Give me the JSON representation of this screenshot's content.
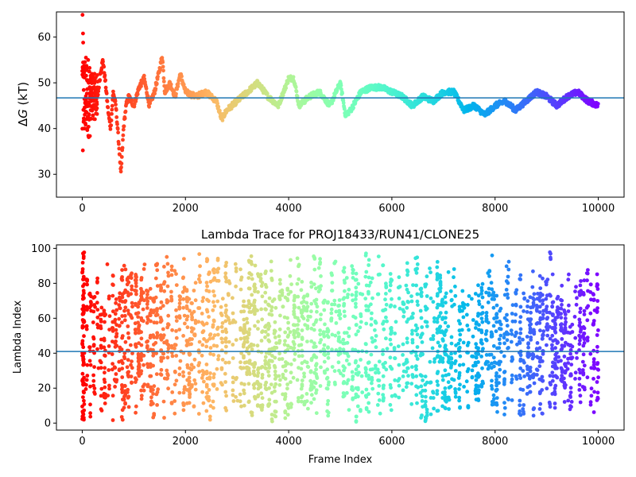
{
  "chart_data": [
    {
      "type": "scatter",
      "title": "",
      "xlabel": "",
      "ylabel": "ΔG (kT)",
      "xlim": [
        -500,
        10500
      ],
      "ylim": [
        25,
        65.5
      ],
      "xticks": [
        0,
        2000,
        4000,
        6000,
        8000,
        10000
      ],
      "yticks": [
        30,
        40,
        50,
        60
      ],
      "hline": 46.7,
      "colormap": "rainbow",
      "grid": false,
      "description_series": {
        "name": "",
        "x": [
          0,
          50,
          100,
          150,
          200,
          250,
          300,
          350,
          400,
          450,
          500,
          550,
          600,
          650,
          700,
          750,
          800,
          850,
          900,
          1000,
          1100,
          1200,
          1300,
          1400,
          1500,
          1550,
          1600,
          1700,
          1800,
          1900,
          2000,
          2200,
          2400,
          2600,
          2700,
          2800,
          3000,
          3200,
          3400,
          3600,
          3800,
          4000,
          4100,
          4200,
          4400,
          4600,
          4800,
          5000,
          5100,
          5200,
          5400,
          5600,
          5800,
          6000,
          6200,
          6400,
          6600,
          6800,
          7000,
          7200,
          7400,
          7600,
          7800,
          8000,
          8200,
          8400,
          8600,
          8800,
          9000,
          9200,
          9400,
          9600,
          9800,
          10000
        ],
        "y": [
          45,
          58,
          50,
          42,
          38,
          44,
          47,
          52,
          55,
          50,
          44,
          40,
          48,
          45,
          38,
          30,
          40,
          45,
          47,
          45,
          49,
          51,
          45,
          48,
          53,
          56,
          48,
          50,
          47,
          52,
          48,
          47,
          48,
          46,
          42,
          44,
          46,
          48,
          50,
          47,
          45,
          51,
          51,
          45,
          47,
          48,
          45,
          50,
          43,
          44,
          48,
          49,
          49,
          48,
          47,
          45,
          47,
          46,
          48,
          48,
          44,
          45,
          43,
          45,
          46,
          44,
          46,
          48,
          47,
          45,
          47,
          48,
          46,
          45
        ]
      }
    },
    {
      "type": "scatter",
      "title": "Lambda Trace for PROJ18433/RUN41/CLONE25",
      "xlabel": "Frame Index",
      "ylabel": "Lambda Index",
      "xlim": [
        -500,
        10500
      ],
      "ylim": [
        -4,
        102
      ],
      "xticks": [
        0,
        2000,
        4000,
        6000,
        8000,
        10000
      ],
      "yticks": [
        0,
        20,
        40,
        60,
        80,
        100
      ],
      "hline": 41,
      "colormap": "rainbow",
      "grid": false,
      "lambda_range": [
        0,
        99
      ],
      "frame_count": 10000
    }
  ],
  "axes": {
    "top": {
      "ylabel_prefix": "Δ",
      "ylabel_var": "G",
      "ylabel_unit": " (kT)"
    }
  }
}
